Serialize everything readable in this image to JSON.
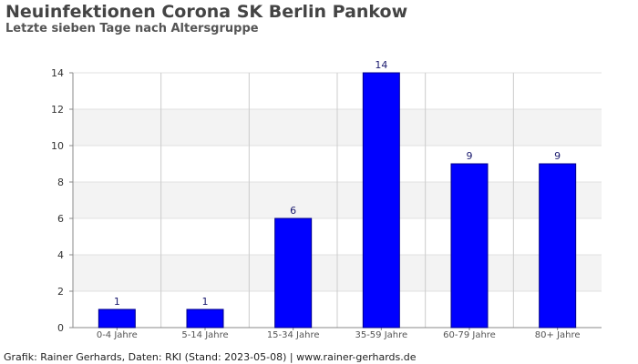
{
  "header": {
    "title": "Neuinfektionen Corona SK Berlin Pankow",
    "subtitle": "Letzte sieben Tage nach Altersgruppe"
  },
  "footer": {
    "credit": "Grafik: Rainer Gerhards, Daten: RKI (Stand: 2023-05-08) | www.rainer-gerhards.de"
  },
  "chart_data": {
    "type": "bar",
    "categories": [
      "0-4 Jahre",
      "5-14 Jahre",
      "15-34 Jahre",
      "35-59 Jahre",
      "60-79 Jahre",
      "80+ Jahre"
    ],
    "values": [
      1,
      1,
      6,
      14,
      9,
      9
    ],
    "ylim": [
      0,
      14
    ],
    "yticks": [
      0,
      2,
      4,
      6,
      8,
      10,
      12,
      14
    ],
    "data_labels": true,
    "grid": true,
    "colors": {
      "bar": "#0000ff",
      "bar_border": "#00008b",
      "band": "#f3f3f3",
      "grid": "#cccccc"
    }
  }
}
